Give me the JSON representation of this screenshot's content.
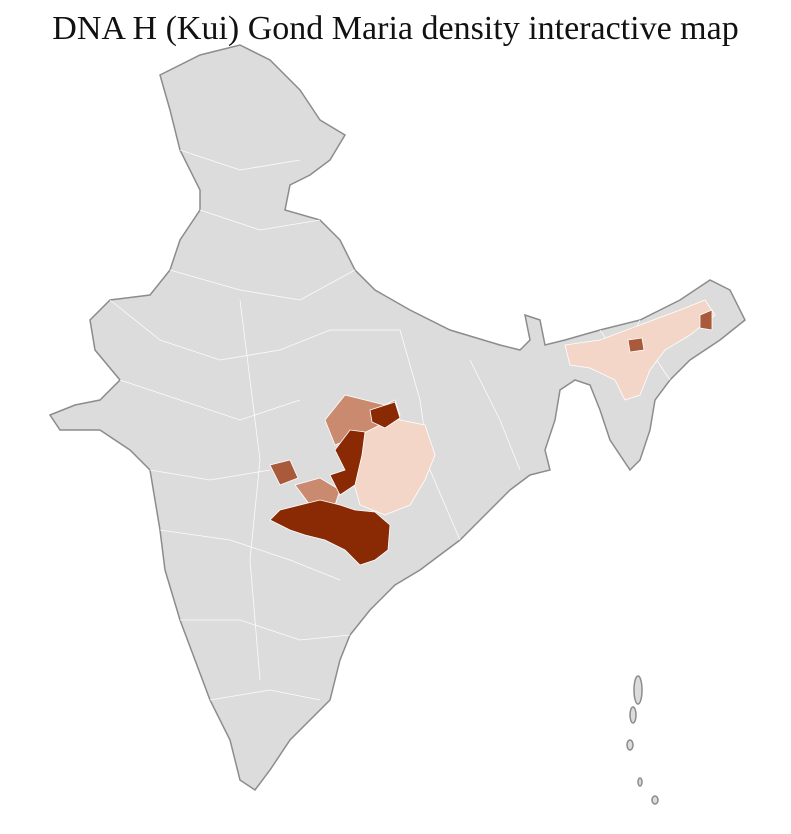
{
  "title": "DNA H (Kui) Gond Maria density interactive map"
}
